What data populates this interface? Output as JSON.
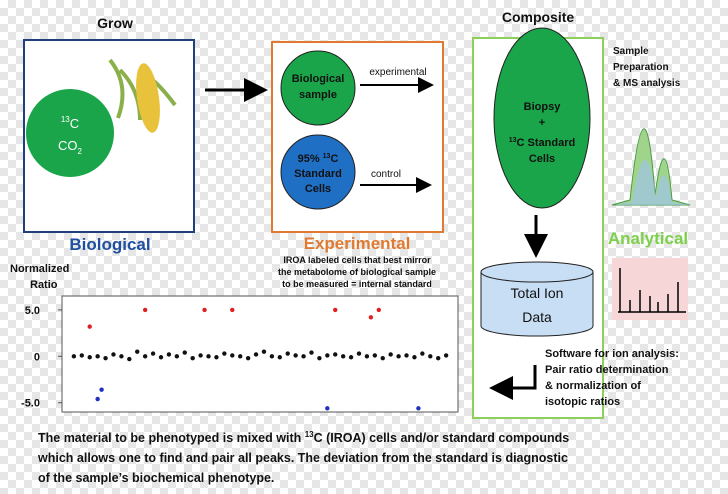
{
  "grow": {
    "title": "Grow",
    "co2": [
      "13",
      "C",
      "CO",
      "2"
    ],
    "label": "Biological"
  },
  "experimental": {
    "sample": [
      "Biological",
      "sample"
    ],
    "experimental_arrow": "experimental",
    "standard": [
      "95% ",
      "13",
      "C",
      "Standard",
      "Cells"
    ],
    "control_arrow": "control",
    "label": "Experimental",
    "note": [
      "IROA labeled cells that best mirror",
      "the metabolome of biological sample",
      "to be measured = internal standard"
    ]
  },
  "composite": {
    "title": "Composite",
    "biopsy": [
      "Biopsy",
      "+",
      "13",
      "C Standard",
      "Cells"
    ],
    "ion_data": [
      "Total Ion",
      "Data"
    ]
  },
  "analytical": {
    "title": [
      "Sample",
      "Preparation",
      "& MS analysis"
    ],
    "label": "Analytical"
  },
  "software": [
    "Software for ion analysis:",
    "Pair ratio determination",
    "& normalization of",
    "isotopic ratios"
  ],
  "plot": {
    "ylabel": [
      "Normalized",
      "Ratio"
    ],
    "ylim": [
      -6,
      6.5
    ],
    "yticks": [
      {
        "value": 5,
        "label": "5.0"
      },
      0,
      {
        "value": -5,
        "label": "-5.0"
      }
    ],
    "xlim": [
      0,
      100
    ],
    "series": [
      {
        "color": "#111111",
        "x": [
          3,
          5,
          7,
          9,
          11,
          13,
          15,
          17,
          19,
          21,
          23,
          25,
          27,
          29,
          31,
          33,
          35,
          37,
          39,
          41,
          43,
          45,
          47,
          49,
          51,
          53,
          55,
          57,
          59,
          61,
          63,
          65,
          67,
          69,
          71,
          73,
          75,
          77,
          79,
          81,
          83,
          85,
          87,
          89,
          91,
          93,
          95,
          97
        ],
        "values": [
          0,
          0.1,
          -0.1,
          0,
          -0.2,
          0.2,
          0,
          -0.3,
          0.5,
          0,
          0.3,
          -0.1,
          0.2,
          0,
          0.4,
          -0.2,
          0.1,
          0,
          -0.1,
          0.3,
          0.1,
          0,
          -0.2,
          0.2,
          0.5,
          0,
          -0.1,
          0.3,
          0.1,
          0,
          0.4,
          -0.2,
          0.1,
          0.2,
          0,
          -0.1,
          0.3,
          0,
          0.1,
          -0.2,
          0.2,
          0,
          0.1,
          -0.1,
          0.3,
          0,
          -0.2,
          0.1
        ]
      },
      {
        "color": "#e02020",
        "x": [
          7,
          21,
          36,
          43,
          69,
          78,
          80
        ],
        "values": [
          3.2,
          5,
          5,
          5,
          5,
          4.2,
          5
        ]
      },
      {
        "color": "#2030c0",
        "x": [
          9,
          10,
          67,
          90
        ],
        "values": [
          -4.6,
          -3.6,
          -5.6,
          -5.6
        ]
      }
    ]
  },
  "footer": [
    "The material to be phenotyped is mixed with ",
    "13",
    "C (IROA) cells and/or standard compounds",
    "which allows one to find and pair all peaks.  The deviation from the standard is diagnostic",
    "of the sample’s biochemical phenotype."
  ]
}
